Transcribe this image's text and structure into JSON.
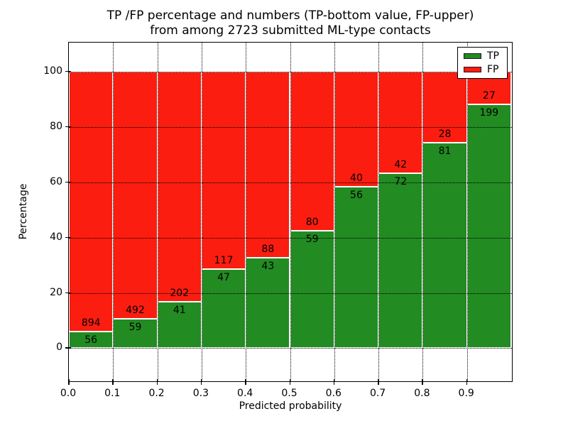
{
  "chart_data": {
    "type": "bar",
    "stacked": true,
    "normalized_to_percent": true,
    "title_lines": [
      "TP /FP percentage and numbers (TP-bottom value, FP-upper)",
      "from among 2723 submitted ML-type contacts"
    ],
    "xlabel": "Predicted probability",
    "ylabel": "Percentage",
    "total_contacts": 2723,
    "bin_width": 0.1,
    "categories": [
      "0.0",
      "0.1",
      "0.2",
      "0.3",
      "0.4",
      "0.5",
      "0.6",
      "0.7",
      "0.8",
      "0.9"
    ],
    "series": [
      {
        "name": "TP",
        "color": "#228B22",
        "values": [
          56,
          59,
          41,
          47,
          43,
          59,
          56,
          72,
          81,
          199
        ]
      },
      {
        "name": "FP",
        "color": "#FB1D10",
        "values": [
          894,
          492,
          202,
          117,
          88,
          80,
          40,
          42,
          28,
          27
        ]
      }
    ],
    "x_tick_labels": [
      "0.0",
      "0.1",
      "0.2",
      "0.3",
      "0.4",
      "0.5",
      "0.6",
      "0.7",
      "0.8",
      "0.9"
    ],
    "y_ticks": [
      0,
      20,
      40,
      60,
      80,
      100
    ],
    "y_tick_labels": [
      "0",
      "20",
      "40",
      "60",
      "80",
      "100"
    ],
    "xlim": [
      0.0,
      1.0
    ],
    "ylim": [
      -11.7,
      110.5
    ],
    "grid": {
      "visible": true,
      "style": "dotted",
      "color": "#000000"
    },
    "legend": {
      "position": "upper-right",
      "entries": [
        {
          "label": "TP",
          "color": "#228B22"
        },
        {
          "label": "FP",
          "color": "#FB1D10"
        }
      ]
    }
  }
}
